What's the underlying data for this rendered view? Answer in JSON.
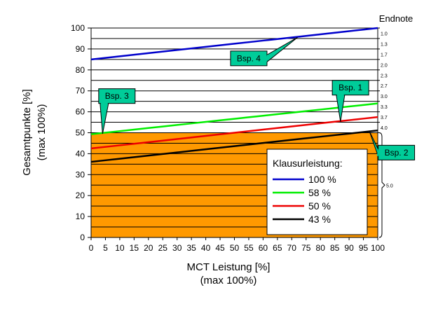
{
  "chart_data": {
    "type": "line",
    "x": [
      0,
      5,
      10,
      15,
      20,
      25,
      30,
      35,
      40,
      45,
      50,
      55,
      60,
      65,
      70,
      75,
      80,
      85,
      90,
      95,
      100
    ],
    "xtick_labels": [
      "0",
      "5",
      "10",
      "15",
      "20",
      "25",
      "30",
      "35",
      "40",
      "45",
      "50",
      "55",
      "60",
      "65",
      "70",
      "75",
      "80",
      "85",
      "90",
      "95",
      "100"
    ],
    "xlim": [
      0,
      100
    ],
    "ylim": [
      0,
      100
    ],
    "yticks": [
      0,
      10,
      20,
      30,
      40,
      50,
      60,
      70,
      80,
      90,
      100
    ],
    "xlabel": "MCT Leistung [%]",
    "xlabel2": "(max 100%)",
    "ylabel": "Gesamtpunkte [%]",
    "ylabel2": "(max 100%)",
    "fail_region": {
      "ymax": 50,
      "color": "#ff9900"
    },
    "grid": "horizontal",
    "series": [
      {
        "name": "100 %",
        "color": "#0000cc",
        "values": [
          85,
          85.75,
          86.5,
          87.25,
          88,
          88.75,
          89.5,
          90.25,
          91,
          91.75,
          92.5,
          93.25,
          94,
          94.75,
          95.5,
          96.25,
          97,
          97.75,
          98.5,
          99.25,
          100
        ]
      },
      {
        "name": "58 %",
        "color": "#00ee00",
        "values": [
          49.3,
          50.04,
          50.77,
          51.51,
          52.24,
          52.98,
          53.71,
          54.45,
          55.18,
          55.92,
          56.65,
          57.39,
          58.12,
          58.86,
          59.59,
          60.33,
          61.06,
          61.8,
          62.53,
          63.27,
          64
        ]
      },
      {
        "name": "50 %",
        "color": "#ee0000",
        "values": [
          42.5,
          43.25,
          44,
          44.75,
          45.5,
          46.25,
          47,
          47.75,
          48.5,
          49.25,
          50,
          50.75,
          51.5,
          52.25,
          53,
          53.75,
          54.5,
          55.25,
          56,
          56.75,
          57.5
        ]
      },
      {
        "name": "43 %",
        "color": "#000000",
        "values": [
          36.1,
          36.85,
          37.6,
          38.35,
          39.1,
          39.85,
          40.6,
          41.35,
          42.1,
          42.85,
          43.6,
          44.35,
          45.1,
          45.85,
          46.6,
          47.35,
          48.1,
          48.85,
          49.6,
          50.35,
          51.1
        ]
      }
    ],
    "legend": {
      "title": "Klausurleistung:",
      "position": "lower-right"
    },
    "grades": {
      "title": "Endnote",
      "items": [
        {
          "label": "1.0",
          "y": 97.5
        },
        {
          "label": "1.3",
          "y": 92.5
        },
        {
          "label": "1.7",
          "y": 87.5
        },
        {
          "label": "2.0",
          "y": 82.5
        },
        {
          "label": "2.3",
          "y": 77.5
        },
        {
          "label": "2.7",
          "y": 72.5
        },
        {
          "label": "3.0",
          "y": 67.5
        },
        {
          "label": "3.3",
          "y": 62.5
        },
        {
          "label": "3.7",
          "y": 57.5
        },
        {
          "label": "4.0",
          "y": 52.5
        }
      ],
      "fail_label": "5.0",
      "fail_y": 25
    },
    "callouts": [
      {
        "label": "Bsp. 4",
        "box_x": 55,
        "box_y": 85.5,
        "tip_x": 72,
        "tip_y": 95.5
      },
      {
        "label": "Bsp. 1",
        "box_x": 90.5,
        "box_y": 71.5,
        "tip_x": 87,
        "tip_y": 55.3
      },
      {
        "label": "Bsp. 3",
        "box_x": 9,
        "box_y": 67.5,
        "tip_x": 4,
        "tip_y": 49.5
      },
      {
        "label": "Bsp. 2",
        "box_x": 106.5,
        "box_y": 40.5,
        "tip_x": 97,
        "tip_y": 51
      }
    ],
    "callout_color": "#00cc99"
  }
}
